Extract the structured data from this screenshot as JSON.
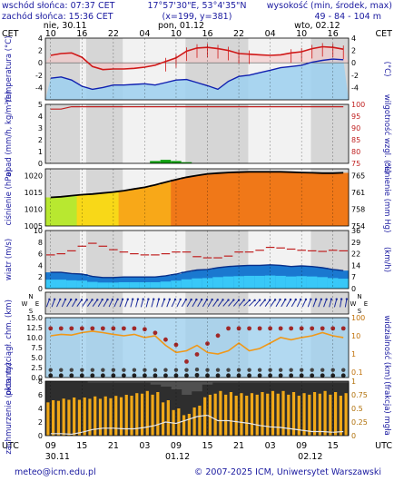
{
  "header": {
    "sunrise": "wschód słońca: 07:37 CET",
    "sunset": "zachód słońca: 15:36 CET",
    "coords": "17°57'30\"E, 53°4'35\"N",
    "grid": "(x=199, y=381)",
    "elevation_label": "wysokość (min, środek, max)",
    "elevation_values": "49 - 84 - 104 m"
  },
  "footer": {
    "email": "meteo@icm.edu.pl",
    "copyright": "© 2007-2025 ICM, Uniwersytet Warszawski"
  },
  "colors": {
    "grid": "#000000",
    "night_band": "#d6d6d6",
    "day_band": "#f2f2f2",
    "temperature": "#d01818",
    "dewpoint": "#1020b0",
    "sky_blue": "#9cd0f0",
    "pressure_line": "#000000",
    "wind_avg_fill": "#1a78d0",
    "gust": "#c02020",
    "humidity": "#c02020",
    "precip": "#10a010",
    "cloud_bar": "#f0a818"
  },
  "chart_data": [
    {
      "type": "line",
      "panel": "temperature",
      "left_label": "temperatura (°C)",
      "right_label": "(°C)",
      "top_labels": [
        {
          "text": "CET",
          "side": "left"
        },
        {
          "text": "nie, 30.11",
          "pos": "left"
        },
        {
          "text": "pon, 01.12",
          "pos": "middle"
        },
        {
          "text": "wto, 02.12",
          "pos": "right"
        },
        {
          "text": "CET",
          "side": "right"
        }
      ],
      "x_ticks_top": [
        "10",
        "16",
        "22",
        "04",
        "10",
        "16",
        "22",
        "04",
        "10",
        "16"
      ],
      "x_hours": [
        10,
        12,
        14,
        16,
        18,
        20,
        22,
        0,
        2,
        4,
        6,
        8,
        10,
        12,
        14,
        16,
        18,
        20,
        22,
        0,
        2,
        4,
        6,
        8,
        10,
        12,
        14,
        16,
        18
      ],
      "ylim": [
        -6,
        4
      ],
      "y_ticks": [
        4,
        2,
        0,
        -2,
        -4
      ],
      "series": [
        {
          "values": [
            1.2,
            1.5,
            1.6,
            0.9,
            -0.6,
            -1.1,
            -1.0,
            -1.0,
            -0.9,
            -0.7,
            -0.4,
            0.2,
            0.8,
            1.9,
            2.4,
            2.5,
            2.3,
            2.0,
            1.5,
            1.4,
            1.3,
            1.2,
            1.3,
            1.6,
            1.8,
            2.3,
            2.6,
            2.5,
            2.2
          ]
        },
        {
          "values": [
            -2.5,
            -2.3,
            -2.8,
            -3.8,
            -4.3,
            -4.0,
            -3.6,
            -3.6,
            -3.5,
            -3.4,
            -3.6,
            -3.2,
            -2.8,
            -2.7,
            -3.2,
            -3.7,
            -4.3,
            -3.0,
            -2.2,
            -2.0,
            -1.6,
            -1.2,
            -0.8,
            -0.6,
            -0.4,
            0.1,
            0.4,
            0.6,
            0.5
          ]
        }
      ]
    },
    {
      "type": "line",
      "panel": "precipitation",
      "left_label": "opad (mm/h, kg/m²/h)",
      "right_label": "wilgotność wzgl. (%)",
      "ylim_left": [
        0,
        5
      ],
      "y_ticks_left": [
        5,
        4,
        3,
        2,
        1,
        0
      ],
      "ylim_right": [
        75,
        100
      ],
      "y_ticks_right": [
        100,
        95,
        90,
        85,
        80,
        75
      ],
      "precip": [
        0,
        0,
        0,
        0,
        0,
        0,
        0,
        0,
        0,
        0,
        0.2,
        0.3,
        0.2,
        0.1,
        0,
        0,
        0,
        0,
        0,
        0,
        0,
        0,
        0,
        0,
        0,
        0,
        0,
        0,
        0
      ],
      "humidity": [
        98,
        98,
        99,
        99,
        99,
        99,
        99,
        99,
        99,
        99,
        99,
        99,
        99,
        99,
        99,
        99,
        99,
        99,
        99,
        99,
        99,
        99,
        99,
        99,
        99,
        99,
        99,
        99,
        99
      ]
    },
    {
      "type": "area",
      "panel": "pressure",
      "left_label": "ciśnienie (hPa)",
      "right_label": "ciśnienie (mm Hg)",
      "ylim": [
        1005,
        1022
      ],
      "y_ticks_left": [
        1020,
        1015,
        1010,
        1005
      ],
      "y_ticks_right": [
        "765",
        "761",
        "758",
        "754"
      ],
      "values": [
        1013.5,
        1013.7,
        1014.0,
        1014.3,
        1014.5,
        1014.8,
        1015.1,
        1015.5,
        1016.0,
        1016.5,
        1017.2,
        1018.0,
        1018.8,
        1019.5,
        1020.0,
        1020.5,
        1020.7,
        1020.9,
        1021.0,
        1021.1,
        1021.1,
        1021.1,
        1021.1,
        1021.0,
        1020.9,
        1020.8,
        1020.7,
        1020.7,
        1020.8
      ]
    },
    {
      "type": "area",
      "panel": "wind",
      "left_label": "wiatr (m/s)",
      "right_label": "(km/h)",
      "ylim": [
        0,
        10
      ],
      "y_ticks_left": [
        10,
        8,
        6,
        4,
        2,
        0
      ],
      "y_ticks_right": [
        "36",
        "29",
        "22",
        "14",
        "7",
        "0"
      ],
      "wind": [
        2.8,
        2.8,
        2.6,
        2.5,
        2.1,
        1.9,
        1.9,
        2.0,
        2.0,
        2.0,
        2.0,
        2.2,
        2.5,
        2.9,
        3.2,
        3.3,
        3.6,
        3.8,
        3.9,
        4.0,
        4.0,
        4.1,
        4.0,
        3.8,
        3.9,
        3.8,
        3.6,
        3.3,
        3.1
      ],
      "gusts": [
        5.8,
        6.0,
        6.5,
        7.3,
        7.8,
        7.3,
        6.7,
        6.3,
        6.0,
        5.8,
        5.8,
        6.0,
        6.3,
        6.3,
        5.5,
        5.3,
        5.3,
        5.6,
        6.3,
        6.3,
        6.6,
        7.1,
        7.0,
        6.8,
        6.6,
        6.5,
        6.4,
        6.6,
        6.5
      ]
    },
    {
      "type": "scatter",
      "panel": "wind_direction",
      "compass_left": [
        "N",
        "W",
        "E",
        "S"
      ],
      "compass_right": [
        "N",
        "W",
        "E",
        "S"
      ],
      "direction_deg": [
        200,
        205,
        210,
        215,
        215,
        210,
        205,
        200,
        195,
        195,
        195,
        200,
        205,
        210,
        210,
        210,
        215,
        220,
        220,
        225,
        220,
        215,
        210,
        210,
        205,
        200,
        200,
        195,
        190
      ]
    },
    {
      "type": "scatter",
      "panel": "visibility",
      "left_label": "pion. rozciągł. chm. (km)",
      "right_label": "widzialność (km)",
      "ylim_left": [
        0,
        15
      ],
      "y_ticks_left": [
        "15.0",
        "12.5",
        "10.0",
        "7.5",
        "5.0",
        "2.5",
        "0.0"
      ],
      "ylim_right": [
        0,
        100
      ],
      "y_ticks_right": [
        "100",
        "10",
        "1",
        "0.1"
      ],
      "cloud_top_km": [
        12.3,
        12.3,
        12.3,
        12.3,
        12.3,
        12.3,
        12.3,
        12.3,
        12.3,
        12.1,
        11.2,
        9.5,
        8.2,
        4.0,
        5.8,
        8.5,
        10.5,
        12.3,
        12.3,
        12.3,
        12.3,
        12.3,
        12.3,
        12.3,
        12.3,
        12.3,
        12.3,
        12.3,
        12.3
      ],
      "cloud_low_km": [
        0.5,
        0.5,
        0.5,
        0.5,
        0.5,
        0.5,
        0.5,
        0.5,
        0.5,
        0.5,
        0.5,
        0.5,
        0.5,
        0.5,
        0.6,
        0.5,
        0.5,
        0.5,
        0.5,
        0.5,
        0.5,
        0.5,
        0.5,
        0.5,
        0.5,
        0.5,
        0.5,
        0.5,
        0.5
      ],
      "visibility_km": [
        10,
        12,
        11,
        15,
        18,
        15,
        12,
        10,
        12,
        8,
        10,
        3,
        1.2,
        1.5,
        3,
        1.2,
        1,
        1.5,
        4,
        1.5,
        2,
        4,
        8,
        6,
        8,
        10,
        15,
        10,
        8
      ]
    },
    {
      "type": "bar",
      "panel": "clouds",
      "left_label": "zachmurzenie (oktanty)",
      "right_label": "(frakcja) mgła",
      "ylim_left": [
        0,
        8
      ],
      "y_ticks_left": [
        "8",
        "6",
        "4",
        "2",
        "0"
      ],
      "ylim_right": [
        0,
        1
      ],
      "y_ticks_right": [
        "1",
        "0.75",
        "0.5",
        "0.25",
        "0"
      ],
      "x_ticks_bottom": [
        "09",
        "15",
        "21",
        "03",
        "09",
        "15",
        "21",
        "03",
        "09",
        "15"
      ],
      "bottom_labels": [
        {
          "text": "UTC",
          "side": "left"
        },
        {
          "text": "30.11",
          "pos": "left"
        },
        {
          "text": "01.12",
          "pos": "middle"
        },
        {
          "text": "02.12",
          "pos": "right"
        },
        {
          "text": "UTC",
          "side": "right"
        }
      ],
      "cloud_octas": [
        8,
        8,
        8,
        8,
        7.8,
        7.8,
        7.8,
        7.8,
        7.8,
        7.8,
        7.5,
        7.2,
        6.8,
        6.0,
        6.5,
        7.5,
        7.8,
        7.8,
        7.8,
        7.8,
        7.8,
        7.8,
        7.8,
        7.8,
        7.8,
        7.8,
        7.8,
        7.8,
        7.8
      ],
      "fog_fraction": [
        0.65,
        0.68,
        0.7,
        0.7,
        0.72,
        0.72,
        0.73,
        0.75,
        0.78,
        0.82,
        0.8,
        0.65,
        0.5,
        0.4,
        0.55,
        0.75,
        0.82,
        0.8,
        0.78,
        0.78,
        0.8,
        0.82,
        0.82,
        0.8,
        0.78,
        0.8,
        0.82,
        0.8,
        0.78
      ],
      "low_cloud_octas": [
        0.3,
        0.3,
        0.2,
        0.5,
        0.9,
        1.1,
        1.1,
        1.0,
        1.0,
        1.2,
        1.5,
        2.0,
        1.8,
        2.3,
        2.8,
        3.0,
        2.2,
        2.2,
        2.0,
        1.8,
        1.5,
        1.3,
        1.2,
        1.0,
        0.8,
        0.6,
        0.6,
        0.5,
        0.6
      ]
    }
  ]
}
